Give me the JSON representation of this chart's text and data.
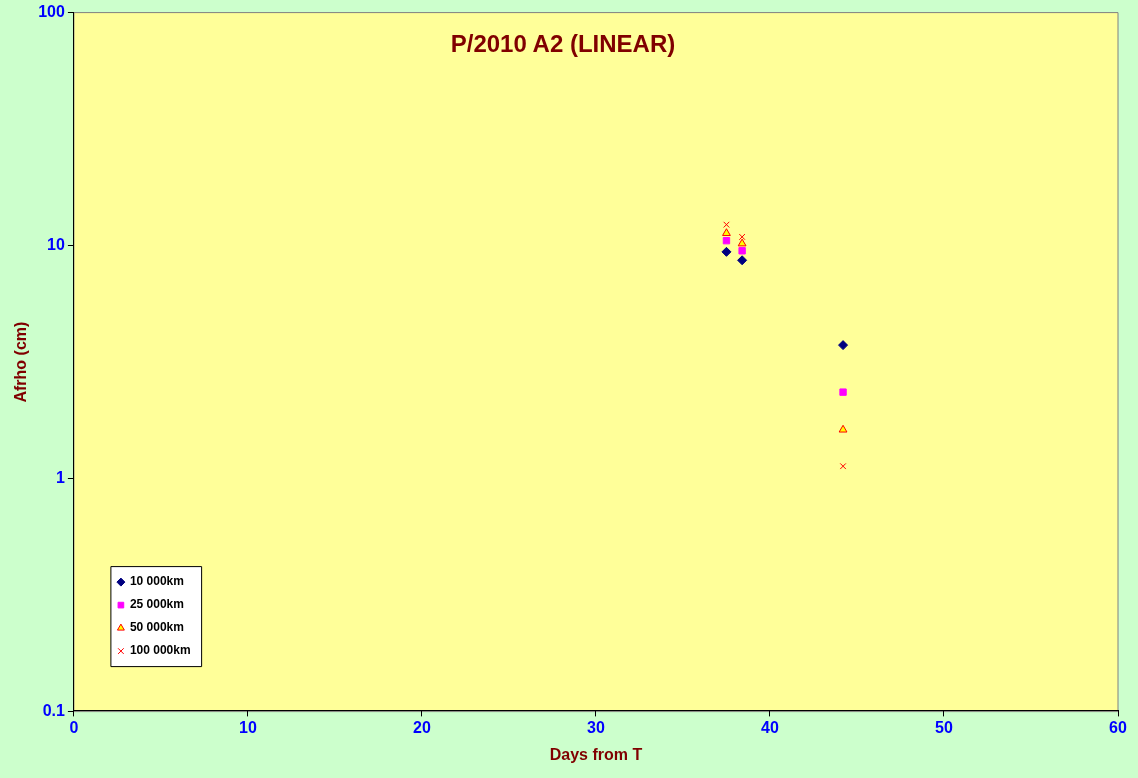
{
  "chart_data": {
    "type": "scatter",
    "title": "P/2010 A2 (LINEAR)",
    "xlabel": "Days from T",
    "ylabel": "Afrho (cm)",
    "log": "y",
    "grid": false,
    "legend": "bottom left",
    "xlim": [
      0,
      60
    ],
    "xticks": [
      0,
      10,
      20,
      30,
      40,
      50,
      60
    ],
    "ylim": [
      0.1,
      100
    ],
    "yticks": [
      0.1,
      1,
      10,
      100
    ],
    "x": [
      37.5,
      38.4,
      44.2
    ],
    "series": [
      {
        "name": "10 000km",
        "color": "#000080",
        "marker": "diamond",
        "values": [
          9.4,
          8.65,
          3.74
        ]
      },
      {
        "name": "25 000km",
        "color": "#ff00ff",
        "marker": "square",
        "values": [
          10.5,
          9.5,
          2.35
        ]
      },
      {
        "name": "50 000km",
        "color": "#ffff00",
        "marker": "triangle",
        "values": [
          11.3,
          10.2,
          1.62
        ]
      },
      {
        "name": "100 000km",
        "color": "#ff0000",
        "marker": "cross",
        "values": [
          12.3,
          10.9,
          1.13
        ]
      }
    ]
  }
}
